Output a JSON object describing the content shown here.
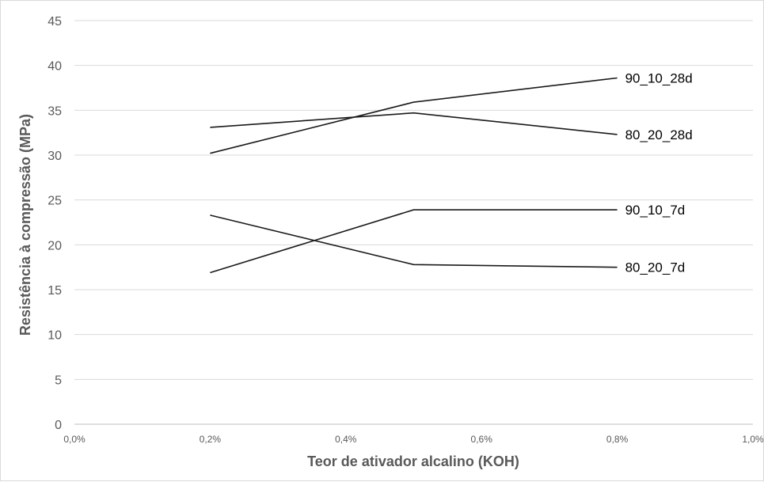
{
  "chart_data": {
    "type": "line",
    "xlabel": "Teor de ativador alcalino (KOH)",
    "ylabel": "Resistência à compressão (MPa)",
    "xlim": [
      0,
      1.0
    ],
    "ylim": [
      0,
      45
    ],
    "x_ticks": [
      0,
      0.2,
      0.4,
      0.6,
      0.8,
      1.0
    ],
    "x_tick_labels": [
      "0,0%",
      "0,2%",
      "0,4%",
      "0,6%",
      "0,8%",
      "1,0%"
    ],
    "y_ticks": [
      0,
      5,
      10,
      15,
      20,
      25,
      30,
      35,
      40,
      45
    ],
    "y_tick_labels": [
      "0",
      "5",
      "10",
      "15",
      "20",
      "25",
      "30",
      "35",
      "40",
      "45"
    ],
    "grid": "horizontal",
    "line_color": "#1a1a1a",
    "x": [
      0.2,
      0.5,
      0.8
    ],
    "series": [
      {
        "name": "90_10_28d",
        "values": [
          30.2,
          35.9,
          38.6
        ]
      },
      {
        "name": "80_20_28d",
        "values": [
          33.1,
          34.7,
          32.3
        ]
      },
      {
        "name": "90_10_7d",
        "values": [
          16.9,
          23.9,
          23.9
        ]
      },
      {
        "name": "80_20_7d",
        "values": [
          23.3,
          17.8,
          17.5
        ]
      }
    ]
  }
}
